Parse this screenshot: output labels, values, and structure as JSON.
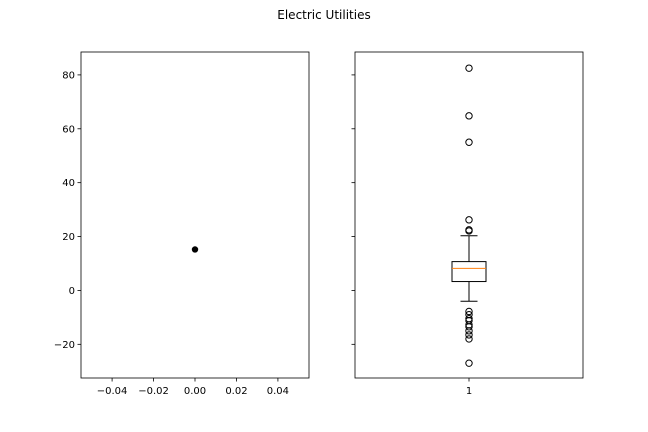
{
  "title": "Electric Utilities",
  "chart_data": [
    {
      "type": "scatter",
      "title": "",
      "xlabel": "",
      "ylabel": "",
      "xlim": [
        -0.055,
        0.055
      ],
      "ylim": [
        -32.5,
        88.5
      ],
      "x_ticks": [
        -0.04,
        -0.02,
        0.0,
        0.02,
        0.04
      ],
      "x_tick_labels": [
        "−0.04",
        "−0.02",
        "0.00",
        "0.02",
        "0.04"
      ],
      "y_ticks": [
        -20,
        0,
        20,
        40,
        60,
        80
      ],
      "y_tick_labels": [
        "−20",
        "0",
        "20",
        "40",
        "60",
        "80"
      ],
      "points": [
        {
          "x": 0.0,
          "y": 15.2
        }
      ],
      "color": "#000000",
      "grid": false
    },
    {
      "type": "box",
      "title": "",
      "xlabel": "",
      "ylabel": "",
      "sharey": true,
      "ylim": [
        -32.5,
        88.5
      ],
      "categories": [
        "1"
      ],
      "box": {
        "whisker_low": -4.0,
        "q1": 3.3,
        "median": 8.2,
        "q3": 10.7,
        "whisker_high": 20.3
      },
      "outliers": [
        82.5,
        64.8,
        55.0,
        26.2,
        22.5,
        22.1,
        -7.8,
        -9.0,
        -10.5,
        -11.2,
        -12.8,
        -13.5,
        -15.0,
        -16.5,
        -18.0,
        -27.0
      ],
      "median_color": "#ff7f0e",
      "grid": false
    }
  ]
}
